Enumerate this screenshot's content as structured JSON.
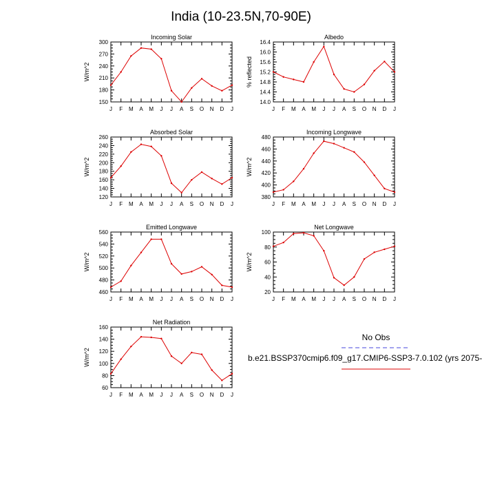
{
  "title": "India (10-23.5N,70-90E)",
  "months": [
    "J",
    "F",
    "M",
    "A",
    "M",
    "J",
    "J",
    "A",
    "S",
    "O",
    "N",
    "D",
    "J"
  ],
  "legend": {
    "obs_label": "No Obs",
    "obs_color": "#4444dd",
    "model_label": "b.e21.BSSP370cmip6.f09_g17.CMIP6-SSP3-7.0.102 (yrs 2075-",
    "model_color": "#dd0000"
  },
  "chart_data": [
    {
      "type": "line",
      "title": "Incoming Solar",
      "ylabel": "W/m^2",
      "ylim": [
        150,
        300
      ],
      "yticks": [
        150,
        180,
        210,
        240,
        270,
        300
      ],
      "x": [
        "J",
        "F",
        "M",
        "A",
        "M",
        "J",
        "J",
        "A",
        "S",
        "O",
        "N",
        "D",
        "J"
      ],
      "values": [
        192,
        225,
        265,
        285,
        282,
        258,
        178,
        150,
        185,
        208,
        190,
        178,
        192
      ]
    },
    {
      "type": "line",
      "title": "Albedo",
      "ylabel": "% reflected",
      "ylim": [
        14.0,
        16.4
      ],
      "yticks": [
        "14.0",
        "14.4",
        "14.8",
        "15.2",
        "15.6",
        "16.0",
        "16.4"
      ],
      "x": [
        "J",
        "F",
        "M",
        "A",
        "M",
        "J",
        "J",
        "A",
        "S",
        "O",
        "N",
        "D",
        "J"
      ],
      "values": [
        15.2,
        15.0,
        14.9,
        14.8,
        15.6,
        16.22,
        15.1,
        14.52,
        14.4,
        14.7,
        15.25,
        15.62,
        15.2
      ]
    },
    {
      "type": "line",
      "title": "Absorbed Solar",
      "ylabel": "W/m^2",
      "ylim": [
        120,
        260
      ],
      "yticks": [
        120,
        140,
        160,
        180,
        200,
        220,
        240,
        260
      ],
      "x": [
        "J",
        "F",
        "M",
        "A",
        "M",
        "J",
        "J",
        "A",
        "S",
        "O",
        "N",
        "D",
        "J"
      ],
      "values": [
        165,
        192,
        225,
        243,
        238,
        216,
        152,
        130,
        160,
        178,
        163,
        150,
        165
      ]
    },
    {
      "type": "line",
      "title": "Incoming Longwave",
      "ylabel": "W/m^2",
      "ylim": [
        380,
        480
      ],
      "yticks": [
        380,
        400,
        420,
        440,
        460,
        480
      ],
      "x": [
        "J",
        "F",
        "M",
        "A",
        "M",
        "J",
        "J",
        "A",
        "S",
        "O",
        "N",
        "D",
        "J"
      ],
      "values": [
        388,
        392,
        406,
        427,
        453,
        473,
        469,
        462,
        455,
        438,
        416,
        394,
        388
      ]
    },
    {
      "type": "line",
      "title": "Emitted Longwave",
      "ylabel": "W/m^2",
      "ylim": [
        460,
        560
      ],
      "yticks": [
        460,
        480,
        500,
        520,
        540,
        560
      ],
      "x": [
        "J",
        "F",
        "M",
        "A",
        "M",
        "J",
        "J",
        "A",
        "S",
        "O",
        "N",
        "D",
        "J"
      ],
      "values": [
        468,
        478,
        504,
        526,
        548,
        548,
        507,
        490,
        494,
        502,
        489,
        471,
        468
      ]
    },
    {
      "type": "line",
      "title": "Net Longwave",
      "ylabel": "W/m^2",
      "ylim": [
        20,
        100
      ],
      "yticks": [
        20,
        40,
        60,
        80,
        100
      ],
      "x": [
        "J",
        "F",
        "M",
        "A",
        "M",
        "J",
        "J",
        "A",
        "S",
        "O",
        "N",
        "D",
        "J"
      ],
      "values": [
        81,
        86,
        98,
        99,
        95,
        75,
        39,
        29,
        40,
        64,
        73,
        77,
        81
      ]
    },
    {
      "type": "line",
      "title": "Net Radiation",
      "ylabel": "W/m^2",
      "ylim": [
        60,
        160
      ],
      "yticks": [
        60,
        80,
        100,
        120,
        140,
        160
      ],
      "x": [
        "J",
        "F",
        "M",
        "A",
        "M",
        "J",
        "J",
        "A",
        "S",
        "O",
        "N",
        "D",
        "J"
      ],
      "values": [
        83,
        107,
        128,
        144,
        143,
        141,
        112,
        100,
        118,
        115,
        89,
        72,
        83
      ]
    }
  ]
}
